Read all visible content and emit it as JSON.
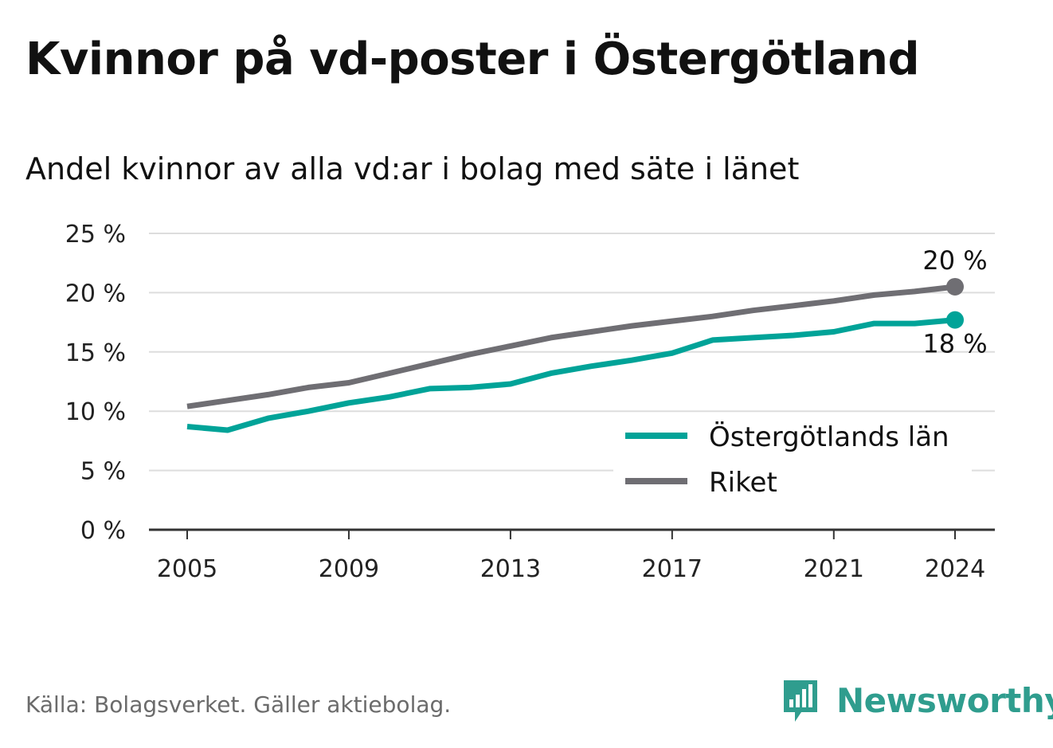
{
  "chart_data": {
    "type": "line",
    "title": "Kvinnor på vd-poster i Östergötland",
    "subtitle": "Andel kvinnor av alla vd:ar i bolag med säte i länet",
    "xlabel": "",
    "ylabel": "",
    "xlim": [
      2005,
      2024
    ],
    "ylim": [
      0,
      25
    ],
    "x_ticks": [
      "2005",
      "2009",
      "2013",
      "2017",
      "2021",
      "2024"
    ],
    "y_ticks": [
      "0 %",
      "5 %",
      "10 %",
      "15 %",
      "20 %",
      "25 %"
    ],
    "x": [
      2005,
      2006,
      2007,
      2008,
      2009,
      2010,
      2011,
      2012,
      2013,
      2014,
      2015,
      2016,
      2017,
      2018,
      2019,
      2020,
      2021,
      2022,
      2023,
      2024
    ],
    "series": [
      {
        "name": "Östergötlands län",
        "color": "#00a398",
        "values": [
          8.7,
          8.4,
          9.4,
          10.0,
          10.7,
          11.2,
          11.9,
          12.0,
          12.3,
          13.2,
          13.8,
          14.3,
          14.9,
          16.0,
          16.2,
          16.4,
          16.7,
          17.4,
          17.4,
          17.7
        ],
        "end_label": "18 %"
      },
      {
        "name": "Riket",
        "color": "#6f6e73",
        "values": [
          10.4,
          10.9,
          11.4,
          12.0,
          12.4,
          13.2,
          14.0,
          14.8,
          15.5,
          16.2,
          16.7,
          17.2,
          17.6,
          18.0,
          18.5,
          18.9,
          19.3,
          19.8,
          20.1,
          20.5
        ],
        "end_label": "20 %"
      }
    ],
    "legend_position": "bottom-right",
    "grid": true
  },
  "footer": {
    "source": "Källa: Bolagsverket. Gäller aktiebolag.",
    "brand": "Newsworthy"
  },
  "colors": {
    "grid": "#dddddd",
    "axis": "#333333",
    "brand": "#2f9d8e"
  }
}
